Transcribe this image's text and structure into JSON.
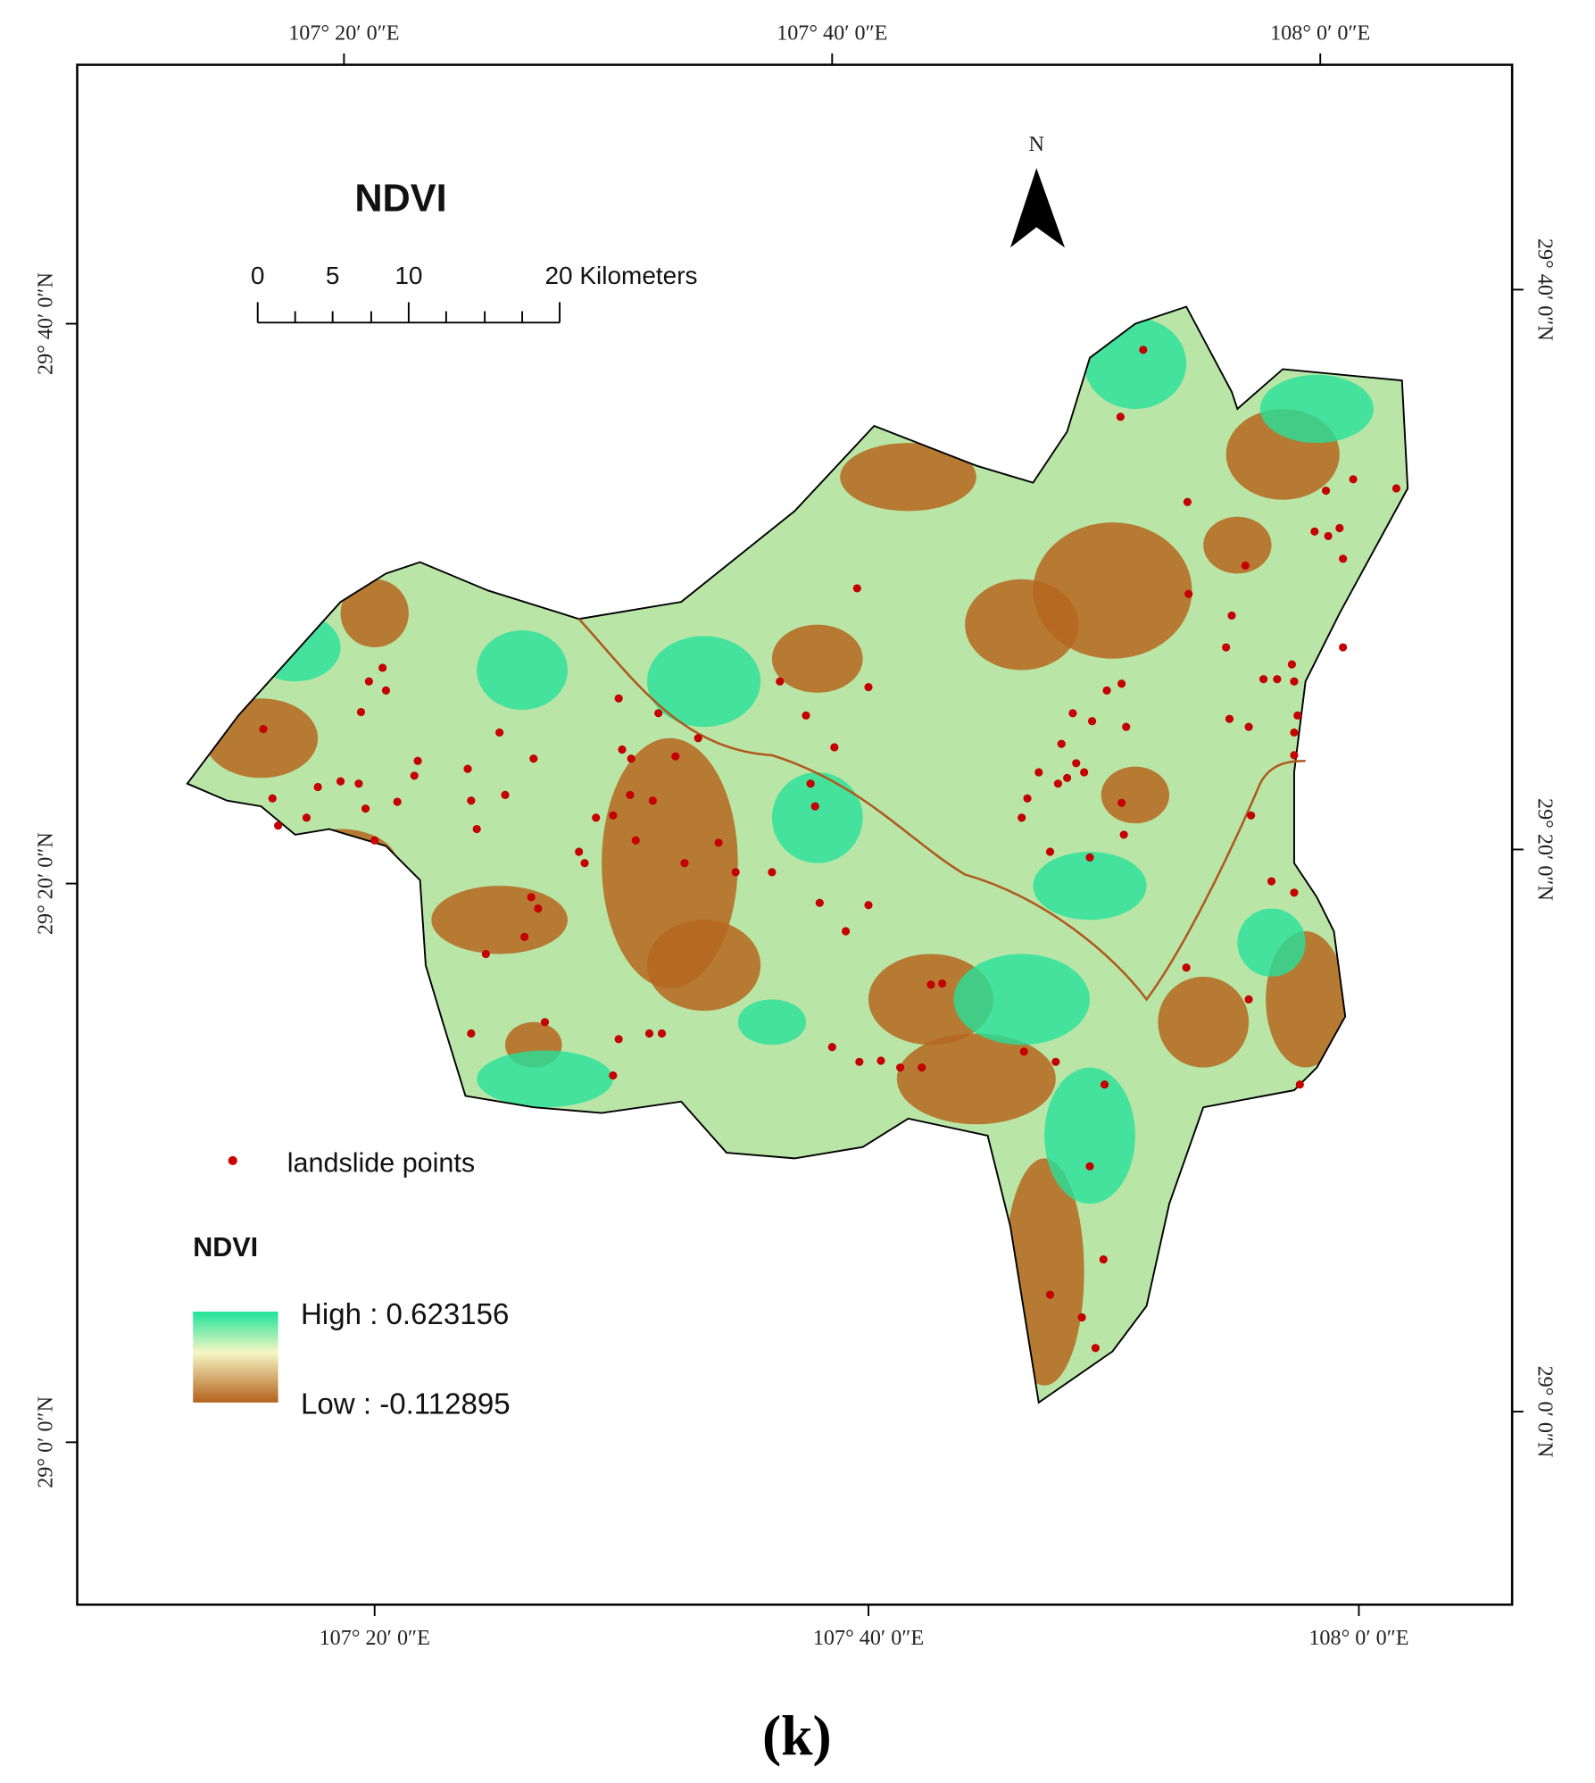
{
  "map": {
    "title": "NDVI",
    "north": "N",
    "scale_bar": {
      "labels": [
        "0",
        "5",
        "10",
        "20 Kilometers"
      ]
    },
    "top_labels": [
      "107° 20′ 0″E",
      "107° 40′ 0″E",
      "108° 0′ 0″E"
    ],
    "bottom_labels": [
      "107° 20′ 0″E",
      "107° 40′ 0″E",
      "108° 0′ 0″E"
    ],
    "left_labels": [
      "29° 40′ 0″N",
      "29° 20′ 0″N",
      "29° 0′ 0″N"
    ],
    "right_labels": [
      "29° 40′ 0″N",
      "29° 20′ 0″N",
      "29° 0′ 0″N"
    ],
    "legend": {
      "points_label": "landslide points",
      "title": "NDVI",
      "high": "High : 0.623156",
      "low": "Low : -0.112895"
    }
  },
  "caption": "(k)"
}
